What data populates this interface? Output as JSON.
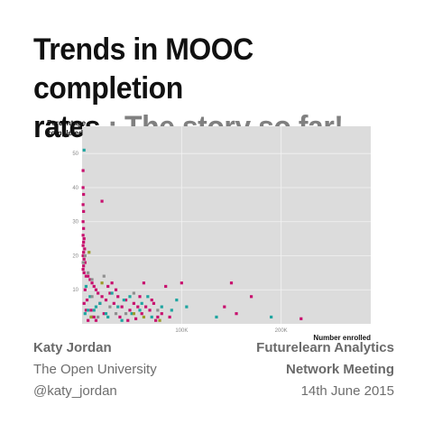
{
  "slide": {
    "title_part1": "Trends in MOOC completion",
    "title_part2_dark": "rates",
    "title_part2_grey": " : The story so far!",
    "author_name": "Katy Jordan",
    "author_affiliation": "The Open University",
    "author_handle": "@katy_jordan",
    "event_line1": "Futurelearn Analytics",
    "event_line2": "Network Meeting",
    "event_date": "14th June 2015"
  },
  "chart_data": {
    "type": "scatter",
    "ylabel_line1": "Percentage",
    "ylabel_line2": "completed",
    "xlabel": "Number enrolled",
    "x_ticks": [
      {
        "value": 100000,
        "label": "100K"
      },
      {
        "value": 200000,
        "label": "200K"
      }
    ],
    "y_ticks": [
      {
        "value": 10,
        "label": "10"
      },
      {
        "value": 20,
        "label": "20"
      },
      {
        "value": 30,
        "label": "30"
      },
      {
        "value": 40,
        "label": "40"
      },
      {
        "value": 50,
        "label": "50"
      }
    ],
    "xlim": [
      0,
      290000
    ],
    "ylim": [
      0,
      58
    ],
    "grid": true,
    "colors": {
      "panel": "#dcdcdc",
      "grid": "#f2f2f2",
      "magenta": "#c8106e",
      "teal": "#1fa5a0",
      "grey": "#8f8f8f",
      "olive": "#9b9b2a"
    },
    "series": [
      {
        "color": "magenta",
        "points": [
          [
            1000,
            40
          ],
          [
            1500,
            38
          ],
          [
            1000,
            35
          ],
          [
            1500,
            33
          ],
          [
            1000,
            30
          ],
          [
            1500,
            28
          ],
          [
            1000,
            26
          ],
          [
            2000,
            25
          ],
          [
            1500,
            24
          ],
          [
            1000,
            23
          ],
          [
            2500,
            22
          ],
          [
            1500,
            21
          ],
          [
            1000,
            20
          ],
          [
            2000,
            19
          ],
          [
            3000,
            18
          ],
          [
            1500,
            17
          ],
          [
            1000,
            16
          ],
          [
            2000,
            15
          ],
          [
            4000,
            14
          ],
          [
            6000,
            14
          ],
          [
            8000,
            13
          ],
          [
            10000,
            12
          ],
          [
            12000,
            11
          ],
          [
            14000,
            10
          ],
          [
            16000,
            9
          ],
          [
            20000,
            8
          ],
          [
            24000,
            7
          ],
          [
            28000,
            9
          ],
          [
            32000,
            6
          ],
          [
            36000,
            8
          ],
          [
            40000,
            5
          ],
          [
            44000,
            7
          ],
          [
            48000,
            4
          ],
          [
            52000,
            6
          ],
          [
            56000,
            5
          ],
          [
            60000,
            3
          ],
          [
            64000,
            5
          ],
          [
            68000,
            4
          ],
          [
            72000,
            6
          ],
          [
            76000,
            2
          ],
          [
            80000,
            3
          ],
          [
            3000,
            10
          ],
          [
            5000,
            7
          ],
          [
            9000,
            4
          ],
          [
            22000,
            3
          ],
          [
            26000,
            11
          ],
          [
            34000,
            10
          ],
          [
            38000,
            2
          ],
          [
            58000,
            8
          ],
          [
            62000,
            12
          ],
          [
            70000,
            7
          ],
          [
            100000,
            12
          ],
          [
            84000,
            11
          ],
          [
            150000,
            12
          ],
          [
            143000,
            5
          ],
          [
            155000,
            3
          ],
          [
            220000,
            1.5
          ],
          [
            170000,
            8
          ],
          [
            2000,
            6
          ],
          [
            4000,
            4
          ],
          [
            12000,
            2
          ],
          [
            18000,
            6
          ],
          [
            30000,
            12
          ],
          [
            46000,
            1
          ],
          [
            54000,
            1.5
          ],
          [
            74000,
            1
          ],
          [
            88000,
            2
          ],
          [
            6000,
            1
          ],
          [
            10000,
            2
          ],
          [
            14000,
            1
          ],
          [
            1000,
            45
          ],
          [
            20000,
            36
          ]
        ]
      },
      {
        "color": "teal",
        "points": [
          [
            2000,
            51
          ],
          [
            4000,
            11
          ],
          [
            8000,
            8
          ],
          [
            12000,
            4
          ],
          [
            18000,
            6
          ],
          [
            24000,
            3
          ],
          [
            30000,
            9
          ],
          [
            36000,
            5
          ],
          [
            42000,
            7
          ],
          [
            50000,
            3
          ],
          [
            60000,
            6
          ],
          [
            70000,
            2
          ],
          [
            80000,
            5
          ],
          [
            90000,
            4
          ],
          [
            95000,
            7
          ],
          [
            105000,
            5
          ],
          [
            135000,
            2
          ],
          [
            190000,
            2
          ],
          [
            48000,
            8
          ],
          [
            14000,
            5
          ],
          [
            26000,
            2
          ],
          [
            6000,
            4
          ],
          [
            40000,
            1
          ],
          [
            58000,
            4
          ],
          [
            66000,
            8
          ],
          [
            3000,
            3
          ]
        ]
      },
      {
        "color": "grey",
        "points": [
          [
            1000,
            18
          ],
          [
            3000,
            20
          ],
          [
            6000,
            15
          ],
          [
            10000,
            13
          ],
          [
            22000,
            14
          ],
          [
            16000,
            2
          ],
          [
            28000,
            5
          ],
          [
            44000,
            3
          ],
          [
            52000,
            9
          ],
          [
            76000,
            4
          ],
          [
            10000,
            8
          ],
          [
            34000,
            3
          ]
        ]
      },
      {
        "color": "olive",
        "points": [
          [
            7000,
            21
          ],
          [
            20000,
            12
          ],
          [
            52000,
            3
          ],
          [
            78000,
            1
          ],
          [
            9000,
            2
          ],
          [
            62000,
            2
          ]
        ]
      }
    ]
  }
}
